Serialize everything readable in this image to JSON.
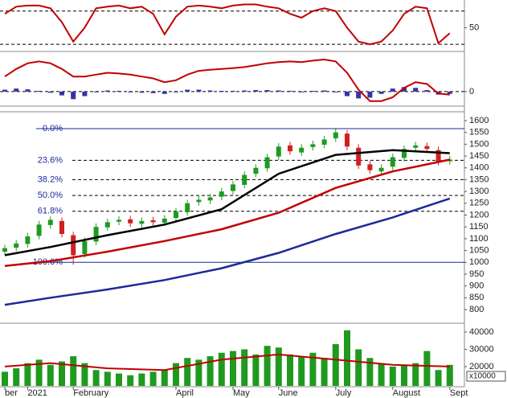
{
  "chart_data": [
    {
      "type": "line",
      "values": [
        75,
        88,
        90,
        90,
        85,
        60,
        25,
        50,
        85,
        88,
        90,
        85,
        88,
        75,
        38,
        70,
        88,
        90,
        88,
        85,
        90,
        92,
        92,
        88,
        85,
        75,
        68,
        80,
        85,
        80,
        50,
        25,
        20,
        25,
        45,
        75,
        88,
        85,
        22,
        40
      ],
      "color": "#c00000",
      "ylim": [
        10,
        100
      ],
      "yticks": [
        50
      ],
      "levels": [
        20,
        80
      ]
    },
    {
      "type": "macd",
      "values": [
        40,
        60,
        75,
        80,
        75,
        60,
        40,
        40,
        45,
        50,
        48,
        45,
        40,
        35,
        25,
        30,
        45,
        55,
        58,
        60,
        62,
        65,
        70,
        75,
        78,
        80,
        78,
        82,
        85,
        80,
        50,
        5,
        -25,
        -25,
        -15,
        10,
        25,
        20,
        -5,
        -8
      ],
      "color": "#c00000",
      "histogram": [
        5,
        8,
        6,
        2,
        -3,
        -10,
        -20,
        -12,
        -2,
        3,
        2,
        -2,
        -3,
        -4,
        -6,
        -2,
        5,
        5,
        3,
        2,
        2,
        3,
        4,
        4,
        3,
        2,
        -2,
        2,
        3,
        -2,
        -12,
        -18,
        -16,
        -6,
        8,
        12,
        10,
        4,
        -8,
        -6
      ],
      "histogram_color": "#3333aa",
      "ylim": [
        -30,
        100
      ],
      "yticks": [
        0
      ]
    },
    {
      "type": "candlestick",
      "open": [
        1045,
        1062,
        1078,
        1112,
        1158,
        1175,
        1115,
        1035,
        1088,
        1148,
        1172,
        1182,
        1163,
        1178,
        1168,
        1188,
        1212,
        1255,
        1262,
        1278,
        1302,
        1328,
        1375,
        1398,
        1448,
        1495,
        1465,
        1488,
        1498,
        1525,
        1545,
        1485,
        1415,
        1385,
        1405,
        1442,
        1485,
        1492,
        1475,
        1428
      ],
      "high": [
        1075,
        1095,
        1125,
        1175,
        1195,
        1190,
        1130,
        1105,
        1165,
        1185,
        1195,
        1197,
        1190,
        1193,
        1200,
        1230,
        1265,
        1280,
        1290,
        1315,
        1345,
        1385,
        1415,
        1460,
        1505,
        1510,
        1500,
        1515,
        1535,
        1570,
        1560,
        1500,
        1430,
        1415,
        1460,
        1495,
        1510,
        1507,
        1490,
        1450
      ],
      "low": [
        1030,
        1047,
        1063,
        1097,
        1143,
        1105,
        990,
        1020,
        1073,
        1133,
        1157,
        1150,
        1148,
        1155,
        1153,
        1173,
        1197,
        1240,
        1247,
        1263,
        1287,
        1313,
        1360,
        1383,
        1433,
        1455,
        1450,
        1473,
        1483,
        1510,
        1475,
        1395,
        1375,
        1370,
        1390,
        1427,
        1470,
        1465,
        1410,
        1413
      ],
      "close": [
        1060,
        1080,
        1110,
        1160,
        1180,
        1120,
        1030,
        1090,
        1150,
        1170,
        1180,
        1165,
        1175,
        1170,
        1185,
        1215,
        1250,
        1265,
        1275,
        1300,
        1330,
        1370,
        1400,
        1445,
        1490,
        1470,
        1485,
        1500,
        1520,
        1550,
        1490,
        1410,
        1390,
        1400,
        1445,
        1480,
        1495,
        1480,
        1425,
        1435
      ],
      "up_color": "#1f9a1f",
      "down_color": "#d02020",
      "moving_averages": [
        {
          "color": "#000000",
          "x": [
            0,
            4,
            9,
            14,
            19,
            24,
            29,
            34,
            39
          ],
          "values": [
            1030,
            1065,
            1115,
            1160,
            1225,
            1375,
            1455,
            1475,
            1462
          ]
        },
        {
          "color": "#c00000",
          "x": [
            0,
            4,
            9,
            14,
            19,
            24,
            29,
            34,
            39
          ],
          "values": [
            985,
            1005,
            1045,
            1090,
            1140,
            1210,
            1315,
            1385,
            1435
          ]
        },
        {
          "color": "#1a2a9a",
          "x": [
            0,
            4,
            9,
            14,
            19,
            24,
            29,
            34,
            39
          ],
          "values": [
            820,
            850,
            885,
            925,
            975,
            1040,
            1120,
            1190,
            1270
          ]
        }
      ],
      "fib_levels": [
        {
          "value": 1566,
          "label": "0.0%"
        },
        {
          "value": 1432,
          "label": "23.6%"
        },
        {
          "value": 1350,
          "label": "38.2%"
        },
        {
          "value": 1283,
          "label": "50.0%"
        },
        {
          "value": 1216,
          "label": "61.8%"
        },
        {
          "value": 1000,
          "label": "100.0%"
        }
      ],
      "fib_color": "#1a2a9a",
      "ylim": [
        749,
        1634
      ],
      "yticks": [
        800,
        850,
        900,
        950,
        1000,
        1050,
        1100,
        1150,
        1200,
        1250,
        1300,
        1350,
        1400,
        1450,
        1500,
        1550,
        1600
      ]
    },
    {
      "type": "bar",
      "values": [
        17000,
        19000,
        22000,
        24000,
        21000,
        23000,
        26000,
        22000,
        18000,
        17000,
        16000,
        15000,
        16000,
        17000,
        18000,
        22000,
        25000,
        24000,
        26000,
        28000,
        29000,
        30000,
        27000,
        32000,
        31000,
        27000,
        26000,
        28000,
        25000,
        33000,
        41000,
        30000,
        25000,
        22000,
        20000,
        21000,
        22000,
        29000,
        18000,
        21000
      ],
      "color": "#1f9a1f",
      "moving_average": {
        "color": "#c00000",
        "x": [
          0,
          4,
          9,
          14,
          19,
          24,
          29,
          34,
          39
        ],
        "values": [
          20000,
          22000,
          19000,
          18000,
          24000,
          27000,
          24000,
          21000,
          20000
        ]
      },
      "ylim": [
        8800,
        43700
      ],
      "yticks": [
        20000,
        30000,
        40000
      ],
      "unit_label": "x10000",
      "categories": [
        "ber",
        null,
        "2021",
        null,
        null,
        null,
        "February",
        null,
        null,
        null,
        null,
        null,
        null,
        null,
        null,
        "April",
        null,
        null,
        null,
        null,
        "May",
        null,
        null,
        null,
        "June",
        null,
        null,
        null,
        null,
        "July",
        null,
        null,
        null,
        null,
        "August",
        null,
        null,
        null,
        null,
        "Sept"
      ]
    }
  ]
}
